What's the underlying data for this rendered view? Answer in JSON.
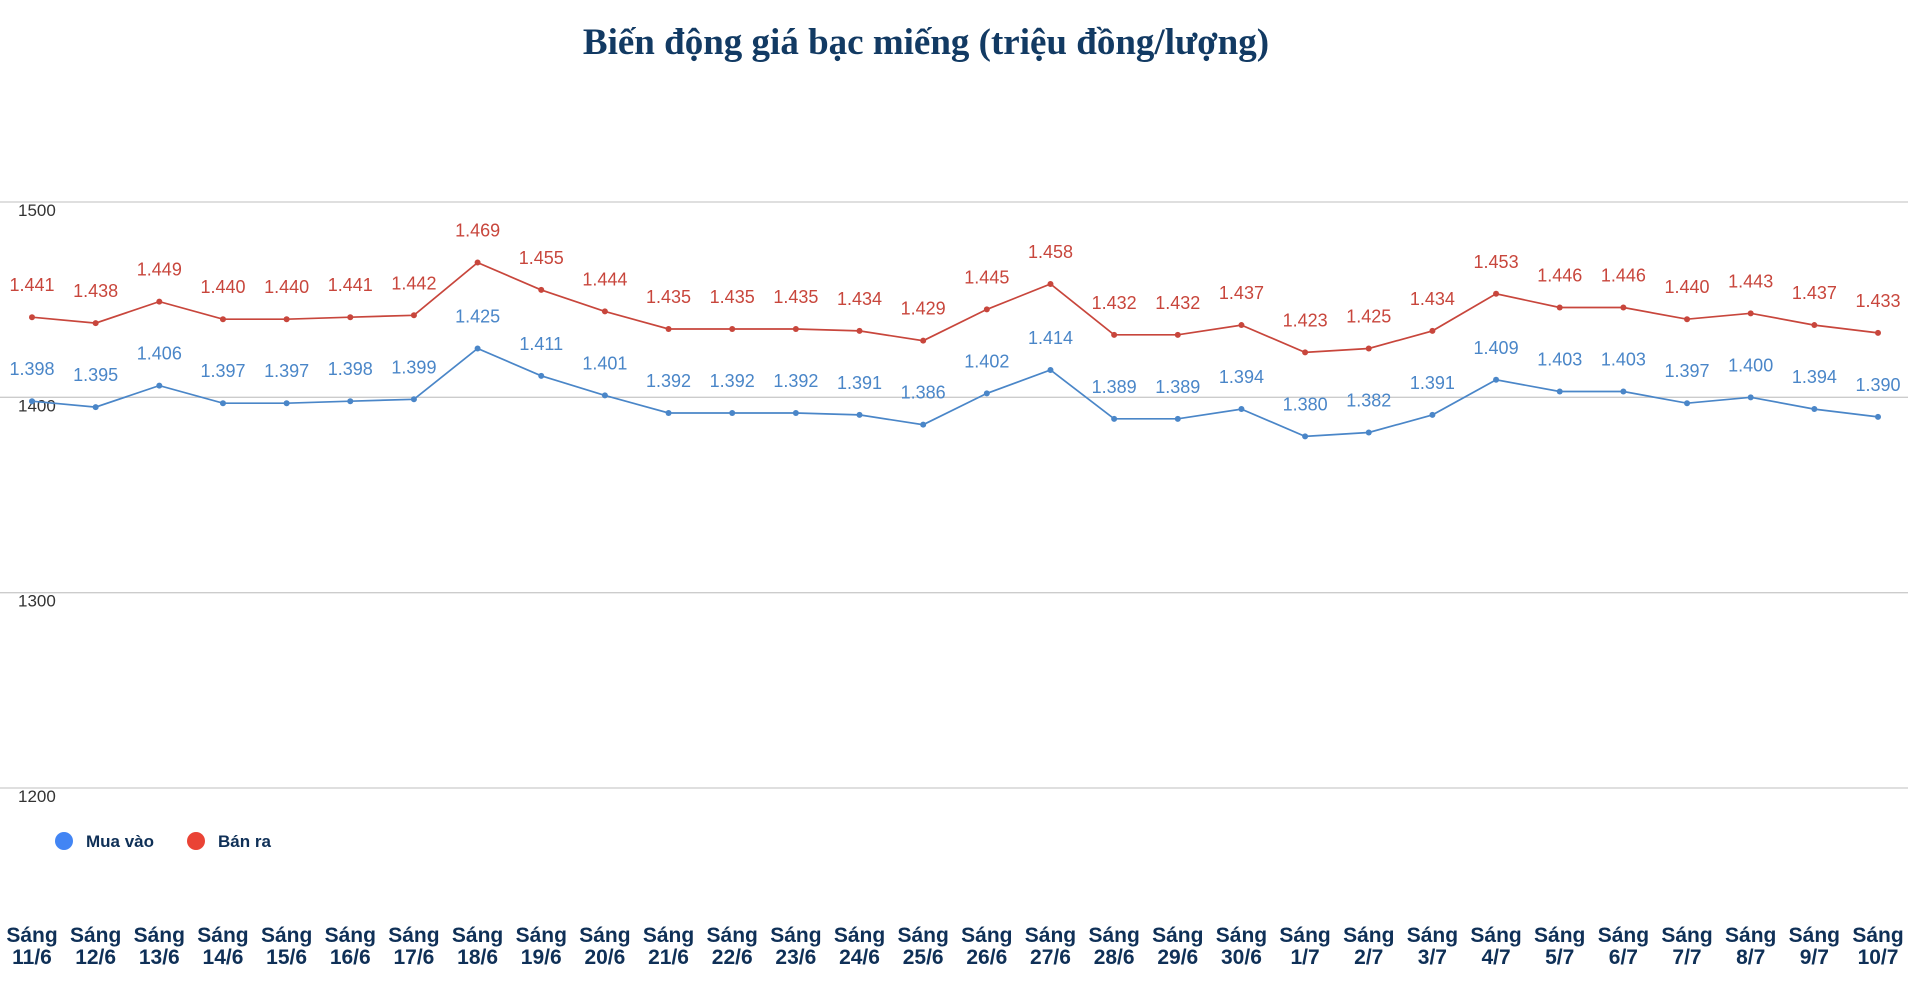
{
  "chart_data": {
    "type": "line",
    "title": "Biến động giá bạc miếng (triệu đồng/lượng)",
    "xlabel": "",
    "ylabel": "",
    "ylim": [
      1150,
      1650
    ],
    "yticks": [
      1200,
      1300,
      1400,
      1500
    ],
    "ytick_labels": [
      "1200",
      "1300",
      "1400",
      "1500"
    ],
    "grid": true,
    "legend_position": "bottom-left",
    "categories": [
      [
        "Sáng",
        "11/6"
      ],
      [
        "Sáng",
        "12/6"
      ],
      [
        "Sáng",
        "13/6"
      ],
      [
        "Sáng",
        "14/6"
      ],
      [
        "Sáng",
        "15/6"
      ],
      [
        "Sáng",
        "16/6"
      ],
      [
        "Sáng",
        "17/6"
      ],
      [
        "Sáng",
        "18/6"
      ],
      [
        "Sáng",
        "19/6"
      ],
      [
        "Sáng",
        "20/6"
      ],
      [
        "Sáng",
        "21/6"
      ],
      [
        "Sáng",
        "22/6"
      ],
      [
        "Sáng",
        "23/6"
      ],
      [
        "Sáng",
        "24/6"
      ],
      [
        "Sáng",
        "25/6"
      ],
      [
        "Sáng",
        "26/6"
      ],
      [
        "Sáng",
        "27/6"
      ],
      [
        "Sáng",
        "28/6"
      ],
      [
        "Sáng",
        "29/6"
      ],
      [
        "Sáng",
        "30/6"
      ],
      [
        "Sáng",
        "1/7"
      ],
      [
        "Sáng",
        "2/7"
      ],
      [
        "Sáng",
        "3/7"
      ],
      [
        "Sáng",
        "4/7"
      ],
      [
        "Sáng",
        "5/7"
      ],
      [
        "Sáng",
        "6/7"
      ],
      [
        "Sáng",
        "7/7"
      ],
      [
        "Sáng",
        "8/7"
      ],
      [
        "Sáng",
        "9/7"
      ],
      [
        "Sáng",
        "10/7"
      ]
    ],
    "series": [
      {
        "name": "Mua vào",
        "color": "#4a86c8",
        "values": [
          1398,
          1395,
          1406,
          1397,
          1397,
          1398,
          1399,
          1425,
          1411,
          1401,
          1392,
          1392,
          1392,
          1391,
          1386,
          1402,
          1414,
          1389,
          1389,
          1394,
          1380,
          1382,
          1391,
          1409,
          1403,
          1403,
          1397,
          1400,
          1394,
          1390
        ],
        "labels": [
          "1.398",
          "1.395",
          "1.406",
          "1.397",
          "1.397",
          "1.398",
          "1.399",
          "1.425",
          "1.411",
          "1.401",
          "1.392",
          "1.392",
          "1.392",
          "1.391",
          "1.386",
          "1.402",
          "1.414",
          "1.389",
          "1.389",
          "1.394",
          "1.380",
          "1.382",
          "1.391",
          "1.409",
          "1.403",
          "1.403",
          "1.397",
          "1.400",
          "1.394",
          "1.390"
        ]
      },
      {
        "name": "Bán ra",
        "color": "#c8463c",
        "values": [
          1441,
          1438,
          1449,
          1440,
          1440,
          1441,
          1442,
          1469,
          1455,
          1444,
          1435,
          1435,
          1435,
          1434,
          1429,
          1445,
          1458,
          1432,
          1432,
          1437,
          1423,
          1425,
          1434,
          1453,
          1446,
          1446,
          1440,
          1443,
          1437,
          1433
        ],
        "labels": [
          "1.441",
          "1.438",
          "1.449",
          "1.440",
          "1.440",
          "1.441",
          "1.442",
          "1.469",
          "1.455",
          "1.444",
          "1.435",
          "1.435",
          "1.435",
          "1.434",
          "1.429",
          "1.445",
          "1.458",
          "1.432",
          "1.432",
          "1.437",
          "1.423",
          "1.425",
          "1.434",
          "1.453",
          "1.446",
          "1.446",
          "1.440",
          "1.443",
          "1.437",
          "1.433"
        ]
      }
    ],
    "legend": [
      {
        "name": "Mua vào",
        "color": "#4285f4"
      },
      {
        "name": "Bán ra",
        "color": "#ea4335"
      }
    ]
  }
}
